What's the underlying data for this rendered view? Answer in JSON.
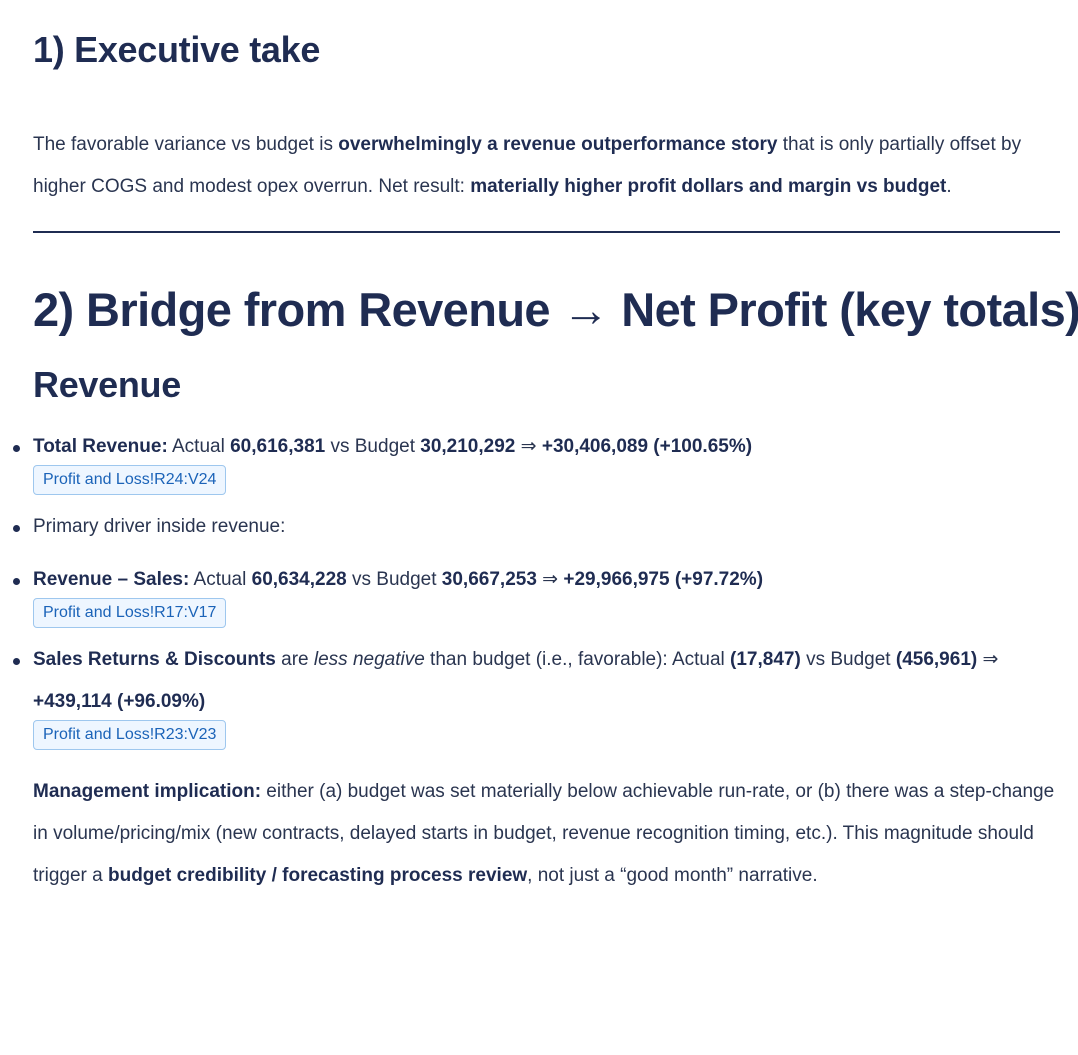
{
  "section1": {
    "title": "1) Executive take",
    "p_1": "The favorable variance vs budget is ",
    "p_2": "overwhelmingly a revenue outperformance story",
    "p_3": " that is only partially offset by higher COGS and modest opex overrun. Net result: ",
    "p_4": "materially higher profit dollars and margin vs budget",
    "p_5": "."
  },
  "section2": {
    "title": "2) Bridge from Revenue → Net Profit (key totals)",
    "subtitle": "Revenue",
    "bullets": [
      {
        "label": "Total Revenue:",
        "t1": " Actual ",
        "actual": "60,616,381",
        "t2": " vs Budget ",
        "budget": "30,210,292",
        "t3": " ⇒ ",
        "variance": "+30,406,089 (+100.65%)",
        "ref": "Profit and Loss!R24:V24"
      },
      {
        "text": "Primary driver inside revenue:"
      },
      {
        "label": "Revenue – Sales:",
        "t1": " Actual ",
        "actual": "60,634,228",
        "t2": " vs Budget ",
        "budget": "30,667,253",
        "t3": " ⇒ ",
        "variance": "+29,966,975 (+97.72%)",
        "ref": "Profit and Loss!R17:V17"
      },
      {
        "label": "Sales Returns & Discounts",
        "t1": " are ",
        "em": "less negative",
        "t2": " than budget (i.e., favorable): Actual ",
        "actual": "(17,847)",
        "t3": " vs Budget ",
        "budget": "(456,961)",
        "t4": " ⇒ ",
        "variance": "+439,114 (+96.09%)",
        "ref": "Profit and Loss!R23:V23"
      }
    ],
    "implication": {
      "label": "Management implication:",
      "t1": " either (a) budget was set materially below achievable run-rate, or (b) there was a step-change in volume/pricing/mix (new contracts, delayed starts in budget, revenue recognition timing, etc.). This magnitude should trigger a ",
      "bold": "budget credibility / forecasting process review",
      "t2": ", not just a “good month” narrative."
    }
  }
}
